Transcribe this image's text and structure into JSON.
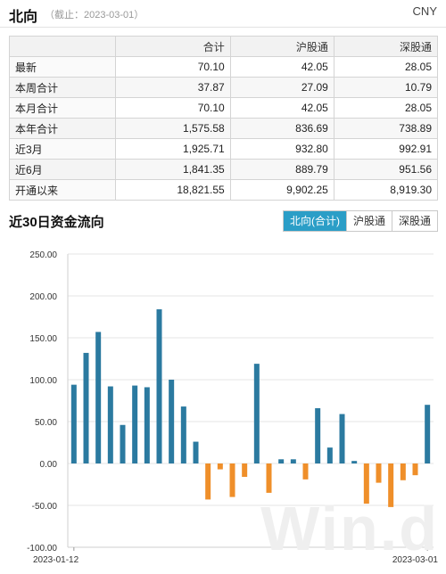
{
  "header": {
    "title": "北向",
    "subtitle": "（截止：2023-03-01）",
    "currency": "CNY"
  },
  "table": {
    "columns": [
      "",
      "合计",
      "沪股通",
      "深股通"
    ],
    "rows": [
      {
        "label": "最新",
        "values": [
          "70.10",
          "42.05",
          "28.05"
        ]
      },
      {
        "label": "本周合计",
        "values": [
          "37.87",
          "27.09",
          "10.79"
        ]
      },
      {
        "label": "本月合计",
        "values": [
          "70.10",
          "42.05",
          "28.05"
        ]
      },
      {
        "label": "本年合计",
        "values": [
          "1,575.58",
          "836.69",
          "738.89"
        ]
      },
      {
        "label": "近3月",
        "values": [
          "1,925.71",
          "932.80",
          "992.91"
        ]
      },
      {
        "label": "近6月",
        "values": [
          "1,841.35",
          "889.79",
          "951.56"
        ]
      },
      {
        "label": "开通以来",
        "values": [
          "18,821.55",
          "9,902.25",
          "8,919.30"
        ]
      }
    ]
  },
  "section": {
    "title": "近30日资金流向"
  },
  "tabs": [
    {
      "label": "北向(合计)",
      "active": true
    },
    {
      "label": "沪股通",
      "active": false
    },
    {
      "label": "深股通",
      "active": false
    }
  ],
  "watermark": "Win.d",
  "colors": {
    "positive": "#2b7aa0",
    "negative": "#ef8f2a",
    "accent": "#2b9ec7"
  },
  "chart_data": {
    "type": "bar",
    "title": "",
    "xlabel": "",
    "ylabel": "",
    "ylim": [
      -100,
      250
    ],
    "yticks": [
      "250.00",
      "200.00",
      "150.00",
      "100.00",
      "50.00",
      "0.00",
      "-50.00",
      "-100.00"
    ],
    "x_tick_labels": [
      "2023-01-12",
      "2023-03-01"
    ],
    "grid": true,
    "values": [
      94,
      132,
      157,
      92,
      46,
      93,
      91,
      184,
      100,
      68,
      26,
      -43,
      -7,
      -40,
      -16,
      119,
      -35,
      5,
      5,
      -19,
      66,
      19,
      59,
      3,
      -48,
      -23,
      -52,
      -20,
      -14,
      70
    ]
  }
}
